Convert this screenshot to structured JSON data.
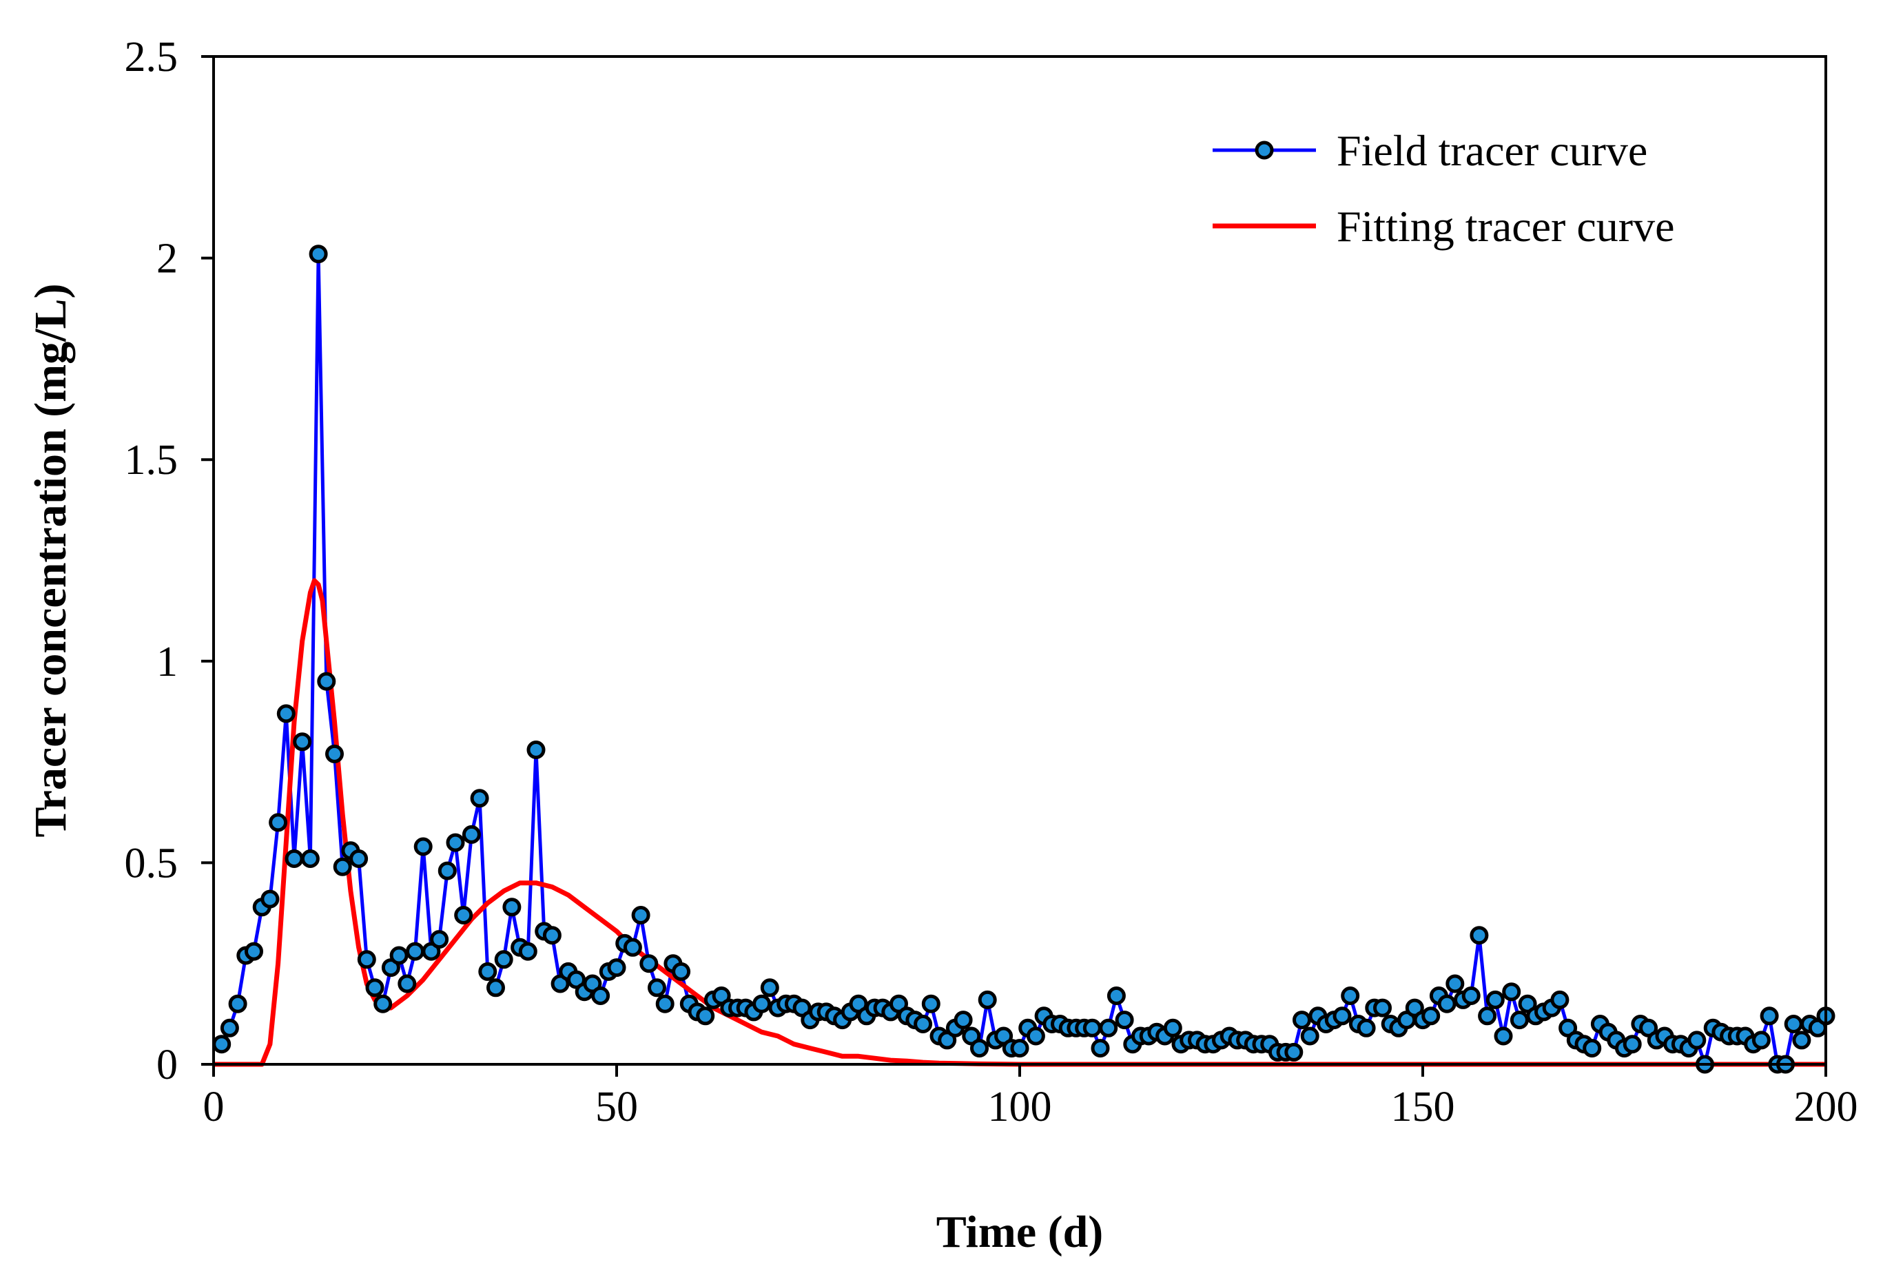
{
  "chart_data": {
    "type": "line",
    "title": "",
    "xlabel": "Time (d)",
    "ylabel": "Tracer concentration (mg/L)",
    "xlim": [
      0,
      200
    ],
    "ylim": [
      0,
      2.5
    ],
    "xticks": [
      0,
      50,
      100,
      150,
      200
    ],
    "yticks": [
      0,
      0.5,
      1,
      1.5,
      2,
      2.5
    ],
    "xtick_labels": [
      "0",
      "50",
      "100",
      "150",
      "200"
    ],
    "ytick_labels": [
      "0",
      "0.5",
      "1",
      "1.5",
      "2",
      "2.5"
    ],
    "grid": false,
    "legend_position": "top-right",
    "series": [
      {
        "name": "Field tracer curve",
        "style": "line-with-markers",
        "color": "#0000ff",
        "marker_fill": "#1e90d8",
        "marker_edge": "#000000",
        "x": [
          1,
          2,
          3,
          4,
          5,
          6,
          7,
          8,
          9,
          10,
          11,
          12,
          13,
          14,
          15,
          16,
          17,
          18,
          19,
          20,
          21,
          22,
          23,
          24,
          25,
          26,
          27,
          28,
          29,
          30,
          31,
          32,
          33,
          34,
          35,
          36,
          37,
          38,
          39,
          40,
          41,
          42,
          43,
          44,
          45,
          46,
          47,
          48,
          49,
          50,
          51,
          52,
          53,
          54,
          55,
          56,
          57,
          58,
          59,
          60,
          61,
          62,
          63,
          64,
          65,
          66,
          67,
          68,
          69,
          70,
          71,
          72,
          73,
          74,
          75,
          76,
          77,
          78,
          79,
          80,
          81,
          82,
          83,
          84,
          85,
          86,
          87,
          88,
          89,
          90,
          91,
          92,
          93,
          94,
          95,
          96,
          97,
          98,
          99,
          100,
          101,
          102,
          103,
          104,
          105,
          106,
          107,
          108,
          109,
          110,
          111,
          112,
          113,
          114,
          115,
          116,
          117,
          118,
          119,
          120,
          121,
          122,
          123,
          124,
          125,
          126,
          127,
          128,
          129,
          130,
          131,
          132,
          133,
          134,
          135,
          136,
          137,
          138,
          139,
          140,
          141,
          142,
          143,
          144,
          145,
          146,
          147,
          148,
          149,
          150,
          151,
          152,
          153,
          154,
          155,
          156,
          157,
          158,
          159,
          160,
          161,
          162,
          163,
          164,
          165,
          166,
          167,
          168,
          169,
          170,
          171,
          172,
          173,
          174,
          175,
          176,
          177,
          178,
          179,
          180,
          181,
          182,
          183,
          184,
          185,
          186,
          187,
          188,
          189,
          190,
          191,
          192,
          193,
          194,
          195,
          196,
          197,
          198,
          199,
          200
        ],
        "y": [
          0.05,
          0.09,
          0.15,
          0.27,
          0.28,
          0.39,
          0.41,
          0.6,
          0.87,
          0.51,
          0.8,
          0.51,
          2.01,
          0.95,
          0.77,
          0.49,
          0.53,
          0.51,
          0.26,
          0.19,
          0.15,
          0.24,
          0.27,
          0.2,
          0.28,
          0.54,
          0.28,
          0.31,
          0.48,
          0.55,
          0.37,
          0.57,
          0.66,
          0.23,
          0.19,
          0.26,
          0.39,
          0.29,
          0.28,
          0.78,
          0.33,
          0.32,
          0.2,
          0.23,
          0.21,
          0.18,
          0.2,
          0.17,
          0.23,
          0.24,
          0.3,
          0.29,
          0.37,
          0.25,
          0.19,
          0.15,
          0.25,
          0.23,
          0.15,
          0.13,
          0.12,
          0.16,
          0.17,
          0.14,
          0.14,
          0.14,
          0.13,
          0.15,
          0.19,
          0.14,
          0.15,
          0.15,
          0.14,
          0.11,
          0.13,
          0.13,
          0.12,
          0.11,
          0.13,
          0.15,
          0.12,
          0.14,
          0.14,
          0.13,
          0.15,
          0.12,
          0.11,
          0.1,
          0.15,
          0.07,
          0.06,
          0.09,
          0.11,
          0.07,
          0.04,
          0.16,
          0.06,
          0.07,
          0.04,
          0.04,
          0.09,
          0.07,
          0.12,
          0.1,
          0.1,
          0.09,
          0.09,
          0.09,
          0.09,
          0.04,
          0.09,
          0.17,
          0.11,
          0.05,
          0.07,
          0.07,
          0.08,
          0.07,
          0.09,
          0.05,
          0.06,
          0.06,
          0.05,
          0.05,
          0.06,
          0.07,
          0.06,
          0.06,
          0.05,
          0.05,
          0.05,
          0.03,
          0.03,
          0.03,
          0.11,
          0.07,
          0.12,
          0.1,
          0.11,
          0.12,
          0.17,
          0.1,
          0.09,
          0.14,
          0.14,
          0.1,
          0.09,
          0.11,
          0.14,
          0.11,
          0.12,
          0.17,
          0.15,
          0.2,
          0.16,
          0.17,
          0.32,
          0.12,
          0.16,
          0.07,
          0.18,
          0.11,
          0.15,
          0.12,
          0.13,
          0.14,
          0.16,
          0.09,
          0.06,
          0.05,
          0.04,
          0.1,
          0.08,
          0.06,
          0.04,
          0.05,
          0.1,
          0.09,
          0.06,
          0.07,
          0.05,
          0.05,
          0.04,
          0.06,
          0.0,
          0.09,
          0.08,
          0.07,
          0.07,
          0.07,
          0.05,
          0.06,
          0.12,
          0.0,
          0.0,
          0.1,
          0.06,
          0.1,
          0.09,
          0.12
        ]
      },
      {
        "name": "Fitting tracer curve",
        "style": "line",
        "color": "#ff0000",
        "x": [
          0,
          6,
          7,
          8,
          9,
          10,
          11,
          12,
          12.5,
          13,
          13.5,
          14,
          15,
          16,
          17,
          18,
          19,
          20,
          21,
          22,
          24,
          26,
          28,
          30,
          32,
          34,
          36,
          38,
          40,
          42,
          44,
          46,
          48,
          50,
          52,
          54,
          56,
          58,
          60,
          62,
          64,
          66,
          68,
          70,
          72,
          74,
          76,
          78,
          80,
          82,
          84,
          86,
          88,
          90,
          95,
          100,
          150,
          200
        ],
        "y": [
          0,
          0,
          0.05,
          0.25,
          0.55,
          0.85,
          1.05,
          1.17,
          1.2,
          1.19,
          1.15,
          1.05,
          0.85,
          0.62,
          0.43,
          0.29,
          0.2,
          0.16,
          0.14,
          0.14,
          0.17,
          0.21,
          0.26,
          0.31,
          0.36,
          0.4,
          0.43,
          0.45,
          0.45,
          0.44,
          0.42,
          0.39,
          0.36,
          0.33,
          0.29,
          0.26,
          0.23,
          0.2,
          0.17,
          0.14,
          0.12,
          0.1,
          0.08,
          0.07,
          0.05,
          0.04,
          0.03,
          0.02,
          0.02,
          0.015,
          0.01,
          0.008,
          0.005,
          0.003,
          0.001,
          0,
          0,
          0
        ]
      }
    ]
  }
}
